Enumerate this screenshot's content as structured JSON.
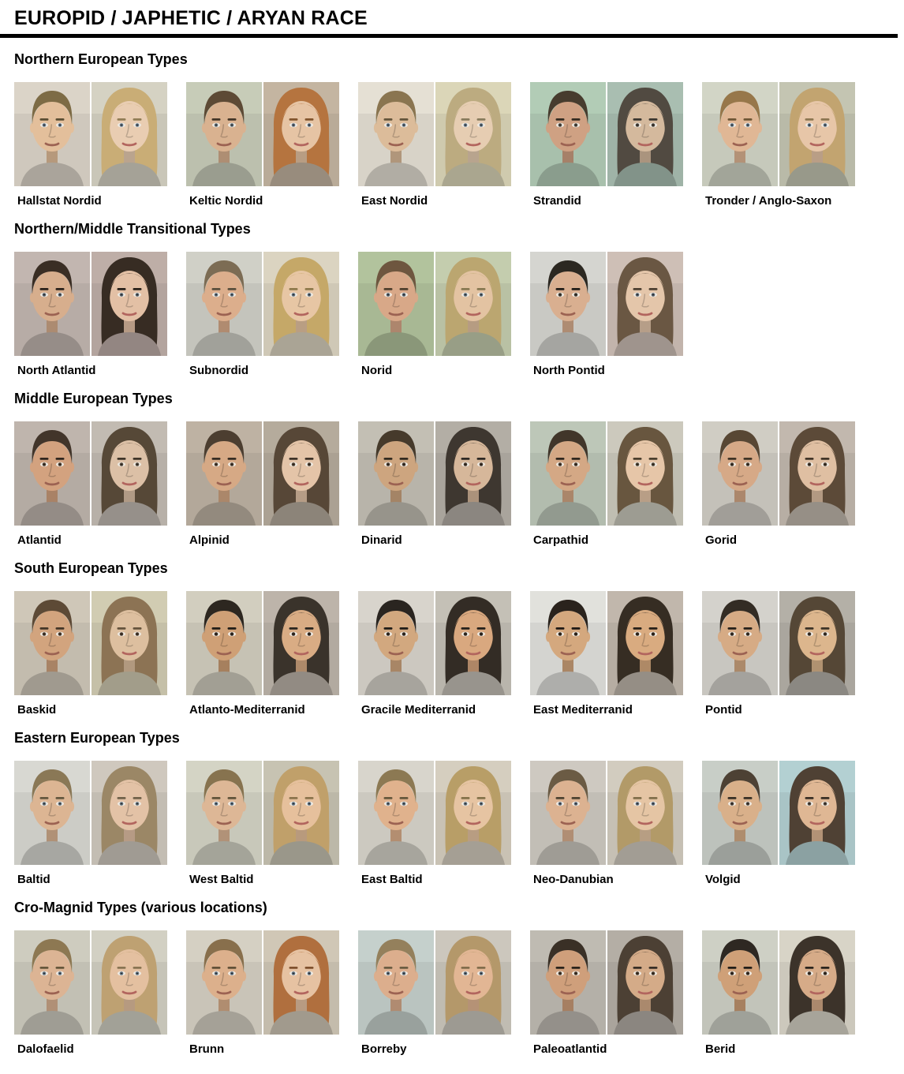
{
  "title": "EUROPID / JAPHETIC / ARYAN RACE",
  "rule_color": "#000000",
  "sections": [
    {
      "heading": "Northern European Types",
      "entries": [
        {
          "label": "Hallstat Nordid",
          "male": {
            "hair": "#7d6b45",
            "skin": "#e3bf9b",
            "bg": "#cfc8bd",
            "eyes": "#607486"
          },
          "female": {
            "hair": "#c9ad76",
            "skin": "#e9cdb2",
            "bg": "#c9c6b8",
            "eyes": "#607486"
          }
        },
        {
          "label": "Keltic Nordid",
          "male": {
            "hair": "#5d4a35",
            "skin": "#d9b290",
            "bg": "#bcc0ae",
            "eyes": "#5b6b75"
          },
          "female": {
            "hair": "#b5743f",
            "skin": "#e6c4a4",
            "bg": "#b9ab98",
            "eyes": "#607080"
          }
        },
        {
          "label": "East Nordid",
          "male": {
            "hair": "#8a7550",
            "skin": "#dcbc9a",
            "bg": "#d8d3c8",
            "eyes": "#5d7183"
          },
          "female": {
            "hair": "#bcab80",
            "skin": "#e6cdb2",
            "bg": "#cfcaae",
            "eyes": "#5d7183"
          }
        },
        {
          "label": "Strandid",
          "male": {
            "hair": "#473c2e",
            "skin": "#cfa183",
            "bg": "#a8c0ac",
            "eyes": "#4f4a42"
          },
          "female": {
            "hair": "#514a41",
            "skin": "#d4b99d",
            "bg": "#9fb3a7",
            "eyes": "#4a443c"
          }
        },
        {
          "label": "Tronder / Anglo-Saxon",
          "male": {
            "hair": "#97774a",
            "skin": "#e0b795",
            "bg": "#c6c9bb",
            "eyes": "#5d7183"
          },
          "female": {
            "hair": "#c2a470",
            "skin": "#e7c6a8",
            "bg": "#b9baa8",
            "eyes": "#5d7183"
          }
        }
      ]
    },
    {
      "heading": "Northern/Middle Transitional Types",
      "entries": [
        {
          "label": "North Atlantid",
          "male": {
            "hair": "#3a2e24",
            "skin": "#d7ae8d",
            "bg": "#b7aca6",
            "eyes": "#55606b"
          },
          "female": {
            "hair": "#372c23",
            "skin": "#e3c0a5",
            "bg": "#b3a49e",
            "eyes": "#55606b"
          }
        },
        {
          "label": "Subnordid",
          "male": {
            "hair": "#7c6c54",
            "skin": "#dcae8c",
            "bg": "#c4c4bc",
            "eyes": "#5d6f7e"
          },
          "female": {
            "hair": "#c5a868",
            "skin": "#e7c6a4",
            "bg": "#cfc8b6",
            "eyes": "#5d6f7e"
          }
        },
        {
          "label": "Norid",
          "male": {
            "hair": "#6e563f",
            "skin": "#d8a888",
            "bg": "#a8b894",
            "eyes": "#53616d"
          },
          "female": {
            "hair": "#bba670",
            "skin": "#e3c3a2",
            "bg": "#b9c1a4",
            "eyes": "#5a6c7a"
          }
        },
        {
          "label": "North Pontid",
          "male": {
            "hair": "#2c2821",
            "skin": "#d9af90",
            "bg": "#c9c9c4",
            "eyes": "#3f3b33"
          },
          "female": {
            "hair": "#6a5743",
            "skin": "#e4c6aa",
            "bg": "#c2b4ac",
            "eyes": "#56626e"
          }
        }
      ]
    },
    {
      "heading": "Middle European Types",
      "entries": [
        {
          "label": "Atlantid",
          "male": {
            "hair": "#42352a",
            "skin": "#d3a27f",
            "bg": "#b4aba3",
            "eyes": "#4a3b2d"
          },
          "female": {
            "hair": "#564837",
            "skin": "#dcc0a6",
            "bg": "#b7b0a8",
            "eyes": "#51463a"
          }
        },
        {
          "label": "Alpinid",
          "male": {
            "hair": "#4c3e30",
            "skin": "#d6a985",
            "bg": "#b3a89a",
            "eyes": "#4c3c2e"
          },
          "female": {
            "hair": "#574737",
            "skin": "#e4c4a8",
            "bg": "#aba193",
            "eyes": "#4c3c2e"
          }
        },
        {
          "label": "Dinarid",
          "male": {
            "hair": "#463a2b",
            "skin": "#cda57f",
            "bg": "#b8b4aa",
            "eyes": "#43352a"
          },
          "female": {
            "hair": "#3e3730",
            "skin": "#d6b79a",
            "bg": "#a9a49c",
            "eyes": "#43352a"
          }
        },
        {
          "label": "Carpathid",
          "male": {
            "hair": "#41362a",
            "skin": "#d4a885",
            "bg": "#b2bcae",
            "eyes": "#463729"
          },
          "female": {
            "hair": "#68563f",
            "skin": "#e6c6a8",
            "bg": "#c0beb2",
            "eyes": "#4d4232"
          }
        },
        {
          "label": "Gorid",
          "male": {
            "hair": "#584734",
            "skin": "#d6a987",
            "bg": "#c4c1b9",
            "eyes": "#453729"
          },
          "female": {
            "hair": "#5c4a38",
            "skin": "#dfbfa2",
            "bg": "#b7aea4",
            "eyes": "#453729"
          }
        }
      ]
    },
    {
      "heading": "South European Types",
      "entries": [
        {
          "label": "Baskid",
          "male": {
            "hair": "#5d4a36",
            "skin": "#d2a47e",
            "bg": "#c3bcae",
            "eyes": "#4a3a2c"
          },
          "female": {
            "hair": "#8c7354",
            "skin": "#ddbf9f",
            "bg": "#c5c0a8",
            "eyes": "#4a3a2c"
          }
        },
        {
          "label": "Atlanto-Mediterranid",
          "male": {
            "hair": "#2d2720",
            "skin": "#cfa076",
            "bg": "#c6c2b4",
            "eyes": "#33281f"
          },
          "female": {
            "hair": "#3a332b",
            "skin": "#d9ac84",
            "bg": "#b2aaa0",
            "eyes": "#33281f"
          }
        },
        {
          "label": "Gracile Mediterranid",
          "male": {
            "hair": "#2a2520",
            "skin": "#d2a87f",
            "bg": "#ccc8c0",
            "eyes": "#32281f"
          },
          "female": {
            "hair": "#332c25",
            "skin": "#d9a87f",
            "bg": "#b9b5ac",
            "eyes": "#32281f"
          }
        },
        {
          "label": "East Mediterranid",
          "male": {
            "hair": "#2a231d",
            "skin": "#d4a87e",
            "bg": "#d4d4d0",
            "eyes": "#302419"
          },
          "female": {
            "hair": "#362d23",
            "skin": "#d9ab80",
            "bg": "#b6ada2",
            "eyes": "#302419"
          }
        },
        {
          "label": "Pontid",
          "male": {
            "hair": "#332c24",
            "skin": "#d6ab85",
            "bg": "#c8c6c0",
            "eyes": "#3a2f24"
          },
          "female": {
            "hair": "#554736",
            "skin": "#dcb68d",
            "bg": "#aaa69e",
            "eyes": "#3a2f24"
          }
        }
      ]
    },
    {
      "heading": "Eastern European Types",
      "entries": [
        {
          "label": "Baltid",
          "male": {
            "hair": "#8a7856",
            "skin": "#dcb593",
            "bg": "#ccccc6",
            "eyes": "#5f6e7a"
          },
          "female": {
            "hair": "#9b8766",
            "skin": "#e3c2a6",
            "bg": "#c3bdb3",
            "eyes": "#5f6e7a"
          }
        },
        {
          "label": "West Baltid",
          "male": {
            "hair": "#87734f",
            "skin": "#ddb796",
            "bg": "#c8c8ba",
            "eyes": "#5c7183"
          },
          "female": {
            "hair": "#c0a06a",
            "skin": "#e6c09c",
            "bg": "#bcb8a8",
            "eyes": "#5c7183"
          }
        },
        {
          "label": "East Baltid",
          "male": {
            "hair": "#8c7953",
            "skin": "#e0b28d",
            "bg": "#ccc9c0",
            "eyes": "#5e6f7c"
          },
          "female": {
            "hair": "#b89e67",
            "skin": "#e6c4a2",
            "bg": "#c9c2b4",
            "eyes": "#5e6f7c"
          }
        },
        {
          "label": "Neo-Danubian",
          "male": {
            "hair": "#6b5b44",
            "skin": "#dcb291",
            "bg": "#c2beb6",
            "eyes": "#596878"
          },
          "female": {
            "hair": "#b29a68",
            "skin": "#e5c5a4",
            "bg": "#c6c0b4",
            "eyes": "#596878"
          }
        },
        {
          "label": "Volgid",
          "male": {
            "hair": "#4d4134",
            "skin": "#d9b08a",
            "bg": "#bdc2bc",
            "eyes": "#4a423a"
          },
          "female": {
            "hair": "#4f4134",
            "skin": "#dfb794",
            "bg": "#a9c4c6",
            "eyes": "#4e443a"
          }
        }
      ]
    },
    {
      "heading": "Cro-Magnid Types (various locations)",
      "entries": [
        {
          "label": "Dalofaelid",
          "male": {
            "hair": "#8d7852",
            "skin": "#dcb494",
            "bg": "#c2c0b4",
            "eyes": "#5e7181"
          },
          "female": {
            "hair": "#bea172",
            "skin": "#e4c0a0",
            "bg": "#c6c4b8",
            "eyes": "#5e7181"
          }
        },
        {
          "label": "Brunn",
          "male": {
            "hair": "#886f4c",
            "skin": "#dcb08c",
            "bg": "#c9c4b8",
            "eyes": "#5a6c7c"
          },
          "female": {
            "hair": "#b06f3e",
            "skin": "#e6c2a2",
            "bg": "#c4bcac",
            "eyes": "#5a6c7c"
          }
        },
        {
          "label": "Borreby",
          "male": {
            "hair": "#94805c",
            "skin": "#dcae8d",
            "bg": "#bac4c0",
            "eyes": "#5a6a78"
          },
          "female": {
            "hair": "#b4986a",
            "skin": "#e2b694",
            "bg": "#c0bcb2",
            "eyes": "#5a6a78"
          }
        },
        {
          "label": "Paleoatlantid",
          "male": {
            "hair": "#3a3026",
            "skin": "#cf9f7b",
            "bg": "#b4b0a8",
            "eyes": "#453627"
          },
          "female": {
            "hair": "#4c4034",
            "skin": "#d4ab88",
            "bg": "#aaa49c",
            "eyes": "#453627"
          }
        },
        {
          "label": "Berid",
          "male": {
            "hair": "#2e2822",
            "skin": "#cfa078",
            "bg": "#c2c4ba",
            "eyes": "#3a2d22"
          },
          "female": {
            "hair": "#3c332a",
            "skin": "#d6ab88",
            "bg": "#ccc8bc",
            "eyes": "#3a2d22"
          }
        }
      ]
    }
  ]
}
